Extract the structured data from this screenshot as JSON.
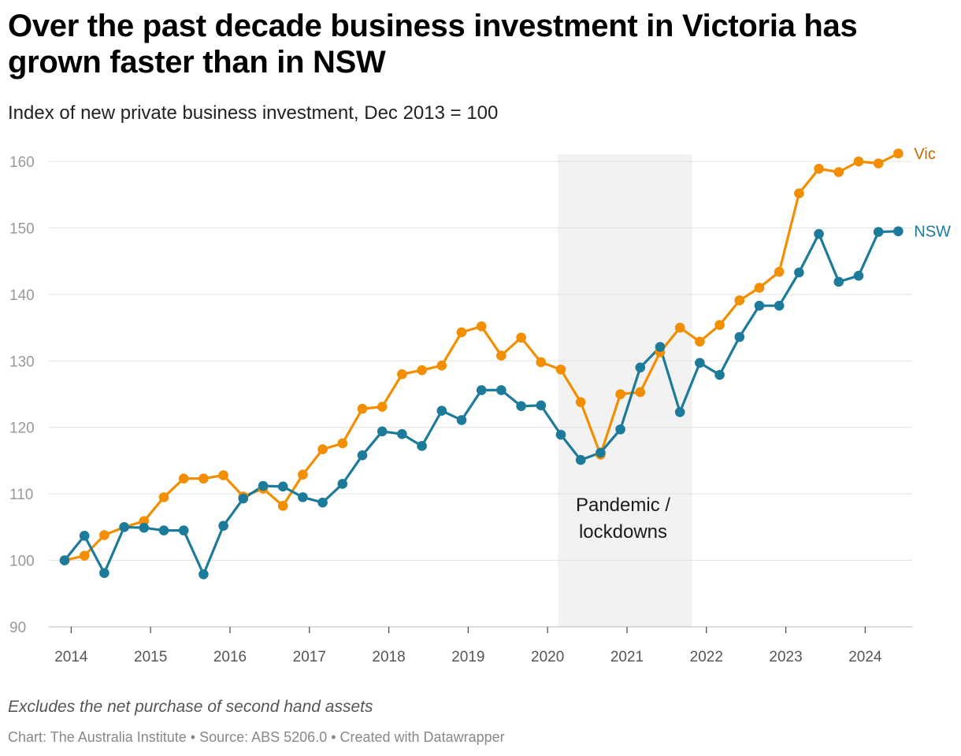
{
  "header": {
    "title": "Over the past decade business investment in Victoria has grown faster than in NSW",
    "subtitle": "Index of new private business investment, Dec 2013 = 100"
  },
  "footer": {
    "notes": "Excludes the net purchase of second hand assets",
    "source": "Chart: The Australia Institute • Source: ABS 5206.0 • Created with Datawrapper"
  },
  "colors": {
    "vic": "#f28e00",
    "vic_label": "#c46a00",
    "nsw": "#1c7b9a",
    "grid": "#e0e0e0",
    "shade": "#eeeeee"
  },
  "chart_data": {
    "type": "line",
    "ylim": [
      90,
      160
    ],
    "yticks": [
      90,
      100,
      110,
      120,
      130,
      140,
      150,
      160
    ],
    "xlim": [
      2013.9,
      2024.6
    ],
    "xticks": [
      2014,
      2015,
      2016,
      2017,
      2018,
      2019,
      2020,
      2021,
      2022,
      2023,
      2024
    ],
    "grid": true,
    "legend": "inline-right",
    "annotation": {
      "label_line1": "Pandemic /",
      "label_line2": "lockdowns",
      "x_start": 2020.13,
      "x_end": 2021.82
    },
    "x": [
      "Dec 2013",
      "Mar 2014",
      "Jun 2014",
      "Sep 2014",
      "Dec 2014",
      "Mar 2015",
      "Jun 2015",
      "Sep 2015",
      "Dec 2015",
      "Mar 2016",
      "Jun 2016",
      "Sep 2016",
      "Dec 2016",
      "Mar 2017",
      "Jun 2017",
      "Sep 2017",
      "Dec 2017",
      "Mar 2018",
      "Jun 2018",
      "Sep 2018",
      "Dec 2018",
      "Mar 2019",
      "Jun 2019",
      "Sep 2019",
      "Dec 2019",
      "Mar 2020",
      "Jun 2020",
      "Sep 2020",
      "Dec 2020",
      "Mar 2021",
      "Jun 2021",
      "Sep 2021",
      "Dec 2021",
      "Mar 2022",
      "Jun 2022",
      "Sep 2022",
      "Dec 2022",
      "Mar 2023",
      "Jun 2023",
      "Sep 2023",
      "Dec 2023",
      "Mar 2024",
      "Jun 2024"
    ],
    "series": [
      {
        "name": "Vic",
        "values": [
          100,
          100.7,
          103.8,
          105,
          105.9,
          109.5,
          112.3,
          112.3,
          112.8,
          109.6,
          110.8,
          108.2,
          112.9,
          116.7,
          117.6,
          122.8,
          123.1,
          128,
          128.6,
          129.3,
          134.3,
          135.2,
          130.8,
          133.5,
          129.8,
          128.7,
          123.8,
          115.9,
          125,
          125.3,
          131.3,
          135,
          132.9,
          135.4,
          139.1,
          141,
          143.4,
          155.2,
          158.9,
          158.4,
          160,
          159.7,
          161.2
        ]
      },
      {
        "name": "NSW",
        "values": [
          100,
          103.7,
          98.1,
          105,
          104.9,
          104.5,
          104.5,
          97.9,
          105.2,
          109.3,
          111.2,
          111.1,
          109.5,
          108.7,
          111.5,
          115.8,
          119.4,
          119,
          117.2,
          122.5,
          121.1,
          125.6,
          125.6,
          123.2,
          123.3,
          118.9,
          115.1,
          116.2,
          119.7,
          129,
          132.1,
          122.3,
          129.7,
          127.9,
          133.6,
          138.3,
          138.3,
          143.3,
          149.1,
          141.9,
          142.8,
          149.4,
          149.5
        ]
      }
    ]
  }
}
